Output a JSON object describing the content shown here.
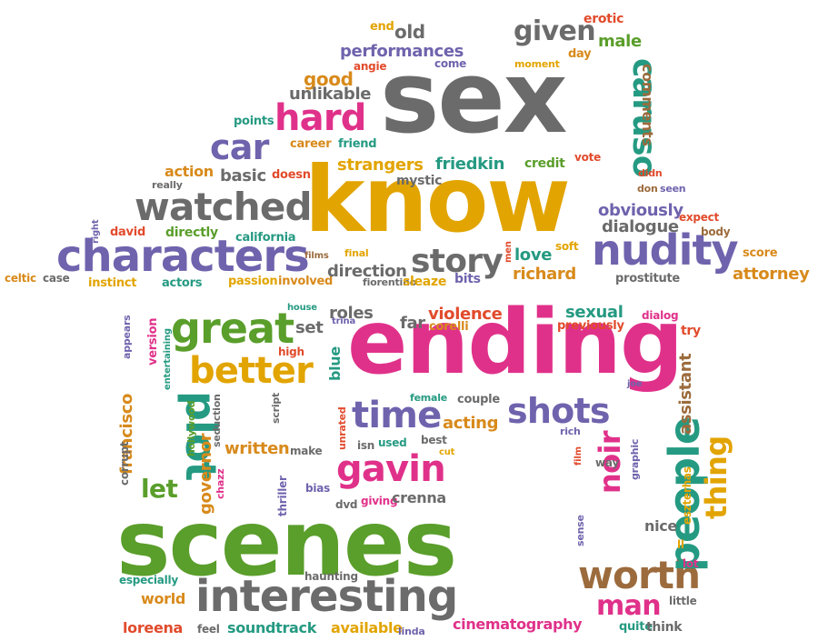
{
  "colors": {
    "gray": "#6b6b6b",
    "gold": "#e2a400",
    "green": "#5a9e2b",
    "purple": "#6f63ad",
    "magenta": "#e0318a",
    "teal": "#259a82",
    "orange": "#d88a1b",
    "brown": "#9c6b3d",
    "red": "#e14b2c"
  },
  "words": [
    {
      "text": "sex",
      "color": "gray",
      "size": 110
    },
    {
      "text": "know",
      "color": "gold",
      "size": 100
    },
    {
      "text": "ending",
      "color": "magenta",
      "size": 98
    },
    {
      "text": "scenes",
      "color": "green",
      "size": 100
    },
    {
      "text": "characters",
      "color": "purple",
      "size": 48
    },
    {
      "text": "watched",
      "color": "gray",
      "size": 42
    },
    {
      "text": "interesting",
      "color": "gray",
      "size": 48
    },
    {
      "text": "nudity",
      "color": "purple",
      "size": 46
    },
    {
      "text": "great",
      "color": "green",
      "size": 46
    },
    {
      "text": "better",
      "color": "gold",
      "size": 40
    },
    {
      "text": "gavin",
      "color": "magenta",
      "size": 40
    },
    {
      "text": "time",
      "color": "purple",
      "size": 40
    },
    {
      "text": "shots",
      "color": "purple",
      "size": 38
    },
    {
      "text": "worth",
      "color": "brown",
      "size": 42
    },
    {
      "text": "people",
      "color": "teal",
      "size": 46
    },
    {
      "text": "plot",
      "color": "teal",
      "size": 46
    },
    {
      "text": "story",
      "color": "gray",
      "size": 36
    },
    {
      "text": "hard",
      "color": "magenta",
      "size": 40
    },
    {
      "text": "car",
      "color": "purple",
      "size": 38
    },
    {
      "text": "caruso",
      "color": "teal",
      "size": 36
    },
    {
      "text": "given",
      "color": "gray",
      "size": 30
    },
    {
      "text": "noir",
      "color": "magenta",
      "size": 32
    },
    {
      "text": "thing",
      "color": "gold",
      "size": 32
    },
    {
      "text": "man",
      "color": "magenta",
      "size": 30
    },
    {
      "text": "let",
      "color": "green",
      "size": 28
    },
    {
      "text": "performances",
      "color": "purple",
      "size": 18
    },
    {
      "text": "old",
      "color": "gray",
      "size": 20
    },
    {
      "text": "end",
      "color": "gold",
      "size": 13
    },
    {
      "text": "erotic",
      "color": "red",
      "size": 14
    },
    {
      "text": "male",
      "color": "green",
      "size": 18
    },
    {
      "text": "day",
      "color": "orange",
      "size": 13
    },
    {
      "text": "moment",
      "color": "gold",
      "size": 11
    },
    {
      "text": "good",
      "color": "orange",
      "size": 20
    },
    {
      "text": "angie",
      "color": "red",
      "size": 12
    },
    {
      "text": "come",
      "color": "purple",
      "size": 12
    },
    {
      "text": "unlikable",
      "color": "gray",
      "size": 18
    },
    {
      "text": "points",
      "color": "teal",
      "size": 13
    },
    {
      "text": "career",
      "color": "orange",
      "size": 13
    },
    {
      "text": "friend",
      "color": "teal",
      "size": 13
    },
    {
      "text": "comments",
      "color": "brown",
      "size": 16
    },
    {
      "text": "action",
      "color": "orange",
      "size": 16
    },
    {
      "text": "basic",
      "color": "gray",
      "size": 18
    },
    {
      "text": "doesn",
      "color": "red",
      "size": 13
    },
    {
      "text": "strangers",
      "color": "gold",
      "size": 18
    },
    {
      "text": "friedkin",
      "color": "teal",
      "size": 18
    },
    {
      "text": "credit",
      "color": "green",
      "size": 14
    },
    {
      "text": "vote",
      "color": "red",
      "size": 12
    },
    {
      "text": "didn",
      "color": "red",
      "size": 11
    },
    {
      "text": "don",
      "color": "brown",
      "size": 11
    },
    {
      "text": "seen",
      "color": "purple",
      "size": 11
    },
    {
      "text": "really",
      "color": "gray",
      "size": 11
    },
    {
      "text": "mystic",
      "color": "gray",
      "size": 14
    },
    {
      "text": "obviously",
      "color": "purple",
      "size": 18
    },
    {
      "text": "dialogue",
      "color": "gray",
      "size": 18
    },
    {
      "text": "expect",
      "color": "red",
      "size": 12
    },
    {
      "text": "body",
      "color": "brown",
      "size": 12
    },
    {
      "text": "right",
      "color": "purple",
      "size": 10
    },
    {
      "text": "david",
      "color": "red",
      "size": 13
    },
    {
      "text": "directly",
      "color": "green",
      "size": 14
    },
    {
      "text": "california",
      "color": "teal",
      "size": 13
    },
    {
      "text": "men",
      "color": "red",
      "size": 10
    },
    {
      "text": "soft",
      "color": "gold",
      "size": 12
    },
    {
      "text": "love",
      "color": "teal",
      "size": 18
    },
    {
      "text": "score",
      "color": "orange",
      "size": 13
    },
    {
      "text": "attorney",
      "color": "orange",
      "size": 18
    },
    {
      "text": "celtic",
      "color": "orange",
      "size": 12
    },
    {
      "text": "case",
      "color": "gray",
      "size": 12
    },
    {
      "text": "instinct",
      "color": "gold",
      "size": 13
    },
    {
      "text": "actors",
      "color": "teal",
      "size": 13
    },
    {
      "text": "passion",
      "color": "gold",
      "size": 13
    },
    {
      "text": "involved",
      "color": "orange",
      "size": 13
    },
    {
      "text": "films",
      "color": "brown",
      "size": 10
    },
    {
      "text": "final",
      "color": "gold",
      "size": 11
    },
    {
      "text": "direction",
      "color": "gray",
      "size": 18
    },
    {
      "text": "fiorentino",
      "color": "gray",
      "size": 11
    },
    {
      "text": "sleaze",
      "color": "gold",
      "size": 14
    },
    {
      "text": "bits",
      "color": "purple",
      "size": 14
    },
    {
      "text": "richard",
      "color": "orange",
      "size": 18
    },
    {
      "text": "prostitute",
      "color": "gray",
      "size": 13
    },
    {
      "text": "house",
      "color": "teal",
      "size": 10
    },
    {
      "text": "roles",
      "color": "gray",
      "size": 18
    },
    {
      "text": "trina",
      "color": "purple",
      "size": 10
    },
    {
      "text": "set",
      "color": "gray",
      "size": 18
    },
    {
      "text": "blue",
      "color": "teal",
      "size": 16
    },
    {
      "text": "far",
      "color": "gray",
      "size": 18
    },
    {
      "text": "corelli",
      "color": "orange",
      "size": 13
    },
    {
      "text": "violence",
      "color": "red",
      "size": 18
    },
    {
      "text": "sexual",
      "color": "teal",
      "size": 18
    },
    {
      "text": "previously",
      "color": "red",
      "size": 13
    },
    {
      "text": "dialog",
      "color": "magenta",
      "size": 12
    },
    {
      "text": "try",
      "color": "red",
      "size": 14
    },
    {
      "text": "version",
      "color": "magenta",
      "size": 13
    },
    {
      "text": "appears",
      "color": "purple",
      "size": 11
    },
    {
      "text": "entertaining",
      "color": "teal",
      "size": 10
    },
    {
      "text": "high",
      "color": "red",
      "size": 12
    },
    {
      "text": "female",
      "color": "teal",
      "size": 11
    },
    {
      "text": "couple",
      "color": "gray",
      "size": 13
    },
    {
      "text": "joe",
      "color": "purple",
      "size": 10
    },
    {
      "text": "assistant",
      "color": "brown",
      "size": 18
    },
    {
      "text": "francisco",
      "color": "orange",
      "size": 18
    },
    {
      "text": "hollywood",
      "color": "green",
      "size": 11
    },
    {
      "text": "seduction",
      "color": "gray",
      "size": 11
    },
    {
      "text": "script",
      "color": "gray",
      "size": 11
    },
    {
      "text": "unrated",
      "color": "red",
      "size": 11
    },
    {
      "text": "acting",
      "color": "orange",
      "size": 18
    },
    {
      "text": "rich",
      "color": "purple",
      "size": 11
    },
    {
      "text": "corrupt",
      "color": "gray",
      "size": 12
    },
    {
      "text": "governor",
      "color": "orange",
      "size": 18
    },
    {
      "text": "written",
      "color": "orange",
      "size": 18
    },
    {
      "text": "make",
      "color": "gray",
      "size": 12
    },
    {
      "text": "isn",
      "color": "gray",
      "size": 12
    },
    {
      "text": "used",
      "color": "teal",
      "size": 12
    },
    {
      "text": "best",
      "color": "gray",
      "size": 12
    },
    {
      "text": "cut",
      "color": "gold",
      "size": 10
    },
    {
      "text": "film",
      "color": "red",
      "size": 10
    },
    {
      "text": "graphic",
      "color": "purple",
      "size": 11
    },
    {
      "text": "way",
      "color": "gray",
      "size": 12
    },
    {
      "text": "eszterhas",
      "color": "gold",
      "size": 12
    },
    {
      "text": "chazz",
      "color": "magenta",
      "size": 11
    },
    {
      "text": "thriller",
      "color": "purple",
      "size": 12
    },
    {
      "text": "dvd",
      "color": "gray",
      "size": 12
    },
    {
      "text": "giving",
      "color": "magenta",
      "size": 12
    },
    {
      "text": "crenna",
      "color": "gray",
      "size": 16
    },
    {
      "text": "bias",
      "color": "purple",
      "size": 12
    },
    {
      "text": "sense",
      "color": "purple",
      "size": 11
    },
    {
      "text": "nice",
      "color": "gray",
      "size": 16
    },
    {
      "text": "ll",
      "color": "gold",
      "size": 12
    },
    {
      "text": "lot",
      "color": "magenta",
      "size": 12
    },
    {
      "text": "especially",
      "color": "teal",
      "size": 12
    },
    {
      "text": "haunting",
      "color": "gray",
      "size": 12
    },
    {
      "text": "world",
      "color": "orange",
      "size": 16
    },
    {
      "text": "little",
      "color": "gray",
      "size": 12
    },
    {
      "text": "loreena",
      "color": "red",
      "size": 16
    },
    {
      "text": "feel",
      "color": "gray",
      "size": 12
    },
    {
      "text": "soundtrack",
      "color": "teal",
      "size": 16
    },
    {
      "text": "available",
      "color": "gold",
      "size": 16
    },
    {
      "text": "linda",
      "color": "purple",
      "size": 11
    },
    {
      "text": "cinematography",
      "color": "magenta",
      "size": 16
    },
    {
      "text": "quite",
      "color": "teal",
      "size": 13
    },
    {
      "text": "think",
      "color": "gray",
      "size": 14
    }
  ]
}
